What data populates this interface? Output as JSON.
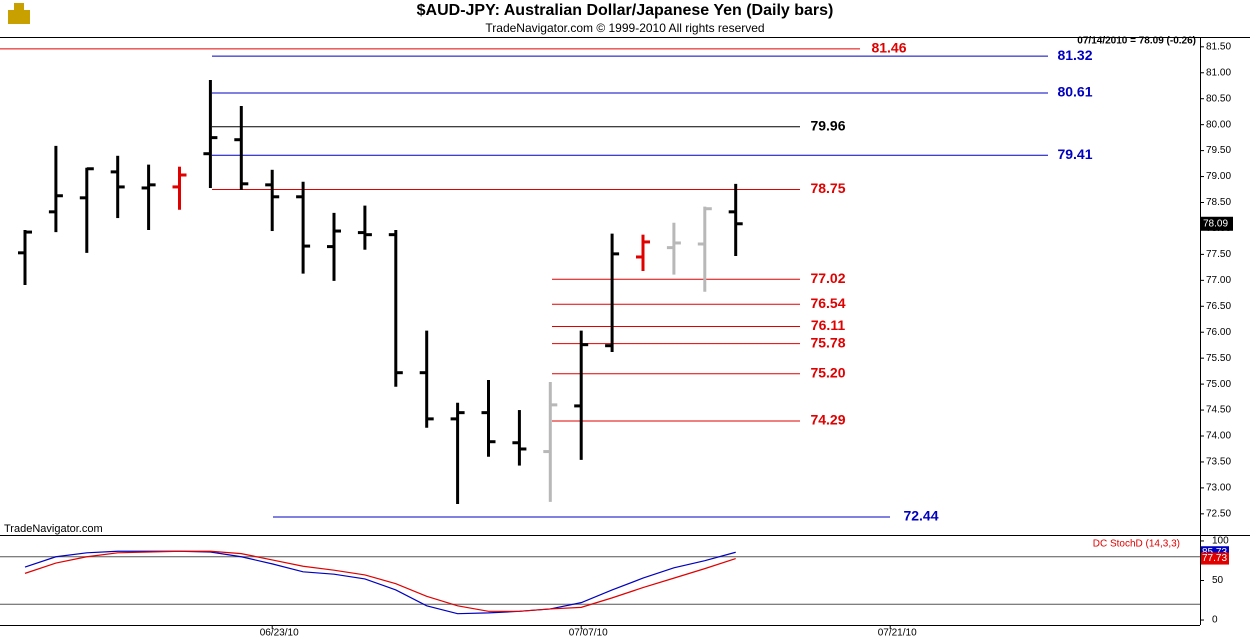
{
  "chart_data": [
    {
      "type": "ohlc",
      "title": "$AUD-JPY:  Australian Dollar/Japanese Yen  (Daily bars)",
      "subtitle": "TradeNavigator.com © 1999-2010 All rights reserved",
      "status": "07/14/2010 = 78.09 (-0.26)",
      "watermark": "TradeNavigator.com",
      "categories": [
        null,
        null,
        null,
        null,
        null,
        null,
        null,
        null,
        "06/23/10",
        null,
        null,
        null,
        null,
        null,
        null,
        null,
        null,
        null,
        "07/07/10",
        null,
        null,
        null,
        null,
        null,
        null,
        null,
        null,
        null,
        "07/21/10"
      ],
      "open": [
        77.53,
        78.32,
        78.59,
        79.09,
        78.78,
        78.8,
        79.44,
        79.71,
        78.84,
        78.61,
        77.65,
        77.92,
        77.88,
        75.22,
        74.33,
        74.45,
        73.87,
        73.7,
        74.58,
        75.74,
        77.45,
        77.63,
        77.7,
        78.32,
        null,
        null,
        null,
        null,
        null
      ],
      "high": [
        77.97,
        79.59,
        79.17,
        79.4,
        79.23,
        79.19,
        80.86,
        80.36,
        79.13,
        78.9,
        78.3,
        78.44,
        77.97,
        76.03,
        74.64,
        75.08,
        74.5,
        75.04,
        76.03,
        77.9,
        77.88,
        78.11,
        78.42,
        78.86,
        null,
        null,
        null,
        null,
        null
      ],
      "low": [
        76.91,
        77.93,
        77.53,
        78.2,
        77.97,
        78.36,
        78.78,
        78.74,
        77.95,
        77.13,
        76.99,
        77.59,
        74.95,
        74.16,
        72.69,
        73.6,
        73.43,
        72.73,
        73.54,
        75.62,
        77.18,
        77.11,
        76.78,
        77.47,
        null,
        null,
        null,
        null,
        null
      ],
      "close": [
        77.93,
        78.63,
        79.15,
        78.8,
        78.84,
        79.03,
        79.75,
        78.86,
        78.61,
        77.66,
        77.95,
        77.88,
        75.22,
        74.33,
        74.45,
        73.89,
        73.75,
        74.6,
        75.76,
        77.51,
        77.74,
        77.72,
        78.38,
        78.09,
        null,
        null,
        null,
        null,
        null
      ],
      "colors": [
        "#000",
        "#000",
        "#000",
        "#000",
        "#000",
        "#e00000",
        "#000",
        "#000",
        "#000",
        "#000",
        "#000",
        "#000",
        "#000",
        "#000",
        "#000",
        "#000",
        "#000",
        "#b8b8b8",
        "#000",
        "#000",
        "#e00000",
        "#b8b8b8",
        "#b8b8b8",
        "#000",
        null,
        null,
        null,
        null,
        null
      ],
      "last": 78.09,
      "levels": [
        {
          "value": 81.46,
          "label": "81.46",
          "color": "#e00000"
        },
        {
          "value": 81.32,
          "label": "81.32",
          "color": "#0000c0"
        },
        {
          "value": 80.61,
          "label": "80.61",
          "color": "#0000c0"
        },
        {
          "value": 79.96,
          "label": "79.96",
          "color": "#000000"
        },
        {
          "value": 79.41,
          "label": "79.41",
          "color": "#0000c0"
        },
        {
          "value": 78.75,
          "label": "78.75",
          "color": "#e00000"
        },
        {
          "value": 77.02,
          "label": "77.02",
          "color": "#e00000"
        },
        {
          "value": 76.54,
          "label": "76.54",
          "color": "#e00000"
        },
        {
          "value": 76.11,
          "label": "76.11",
          "color": "#e00000"
        },
        {
          "value": 75.78,
          "label": "75.78",
          "color": "#e00000"
        },
        {
          "value": 75.2,
          "label": "75.20",
          "color": "#e00000"
        },
        {
          "value": 74.29,
          "label": "74.29",
          "color": "#e00000"
        },
        {
          "value": 72.44,
          "label": "72.44",
          "color": "#0000c0"
        }
      ],
      "ylim": [
        72.15,
        81.67
      ],
      "yticks": [
        {
          "value": 72.5,
          "label": "72.50"
        },
        {
          "value": 73,
          "label": "73.00"
        },
        {
          "value": 73.5,
          "label": "73.50"
        },
        {
          "value": 74,
          "label": "74.00"
        },
        {
          "value": 74.5,
          "label": "74.50"
        },
        {
          "value": 75,
          "label": "75.00"
        },
        {
          "value": 75.5,
          "label": "75.50"
        },
        {
          "value": 76,
          "label": "76.00"
        },
        {
          "value": 76.5,
          "label": "76.50"
        },
        {
          "value": 77,
          "label": "77.00"
        },
        {
          "value": 77.5,
          "label": "77.50"
        },
        {
          "value": 78,
          "label": "78.00"
        },
        {
          "value": 78.5,
          "label": "78.50"
        },
        {
          "value": 79,
          "label": "79.00"
        },
        {
          "value": 79.5,
          "label": "79.50"
        },
        {
          "value": 80,
          "label": "80.00"
        },
        {
          "value": 80.5,
          "label": "80.50"
        },
        {
          "value": 81,
          "label": "81.00"
        },
        {
          "value": 81.5,
          "label": "81.50"
        }
      ]
    },
    {
      "type": "line",
      "title": "DC StochD (14,3,3)",
      "series": [
        {
          "color": "#0000c0",
          "values": [
            67,
            80,
            85,
            87,
            87,
            87,
            86,
            80,
            71,
            61,
            58,
            52,
            38,
            18,
            8,
            9,
            11,
            14,
            22,
            38,
            53,
            66,
            75,
            85.73
          ]
        },
        {
          "color": "#e00000",
          "values": [
            59,
            72,
            80,
            85,
            86,
            87,
            87,
            84,
            76,
            68,
            63,
            57,
            46,
            30,
            18,
            11,
            11,
            14,
            16,
            28,
            41,
            53,
            65,
            77.73
          ]
        }
      ],
      "levels": [
        80,
        20
      ],
      "ylim": [
        -6.3,
        105
      ],
      "yticks": [
        0,
        50,
        100
      ]
    }
  ]
}
